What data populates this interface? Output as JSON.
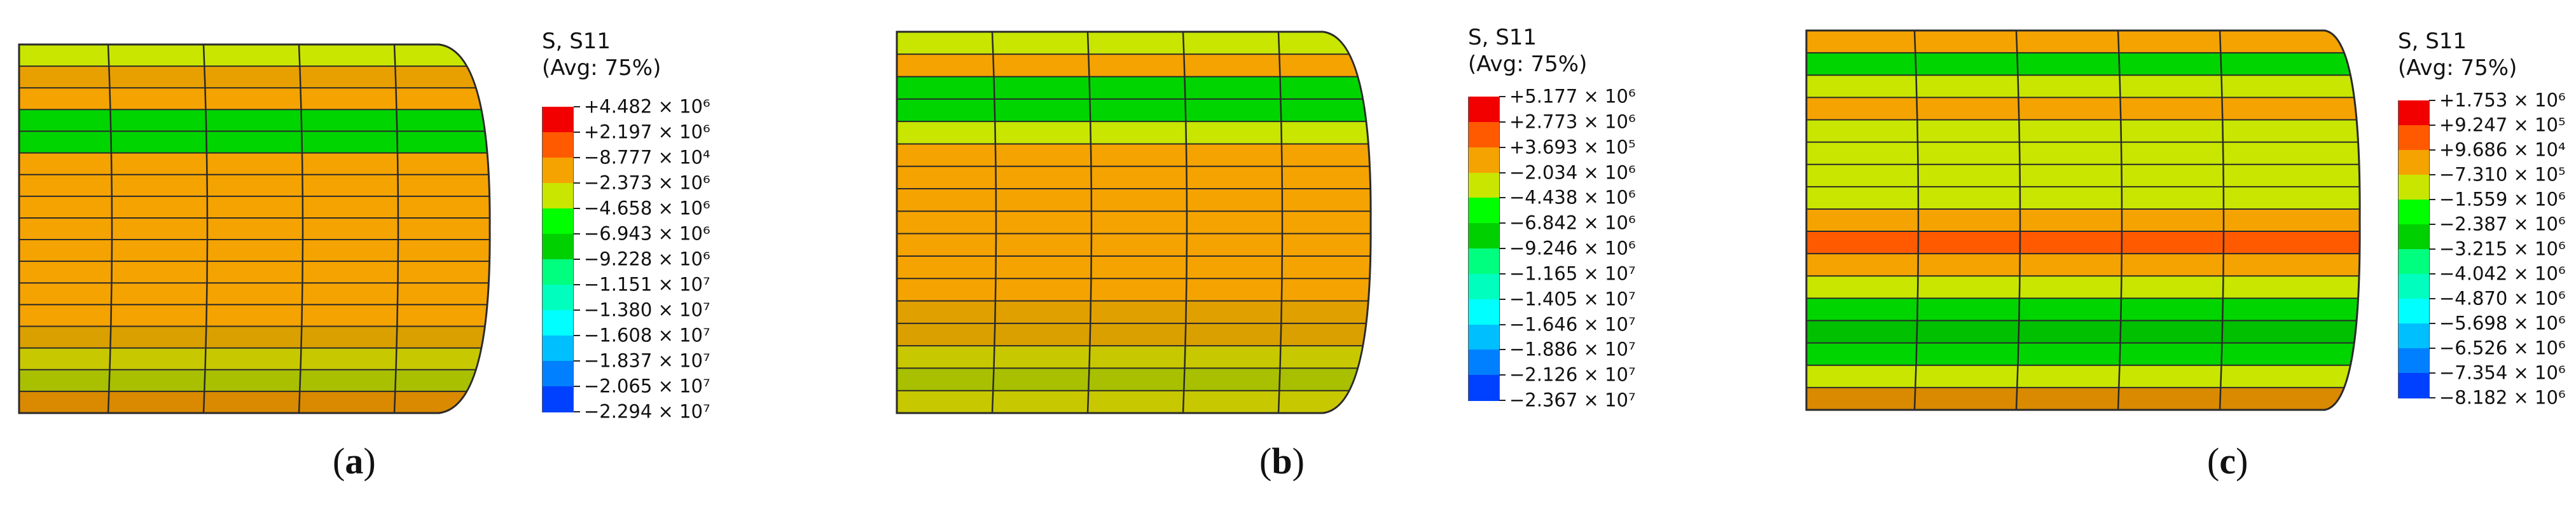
{
  "colors": {
    "red": "#f20000",
    "orange_red": "#ff5a00",
    "orange": "#f5a300",
    "yellow_green": "#c8e600",
    "green": "#00d500",
    "bright_green": "#00ff3c",
    "teal": "#00e6a0",
    "cyan": "#00e6e6",
    "sky": "#00a8ff",
    "blue": "#0046ff",
    "deep_blue": "#0000ff",
    "dark_orange": "#d98a00",
    "olive": "#a8c000"
  },
  "legend_scale": [
    "#f20000",
    "#ff5a00",
    "#f5a300",
    "#c8e600",
    "#00ff00",
    "#00d000",
    "#00ff7f",
    "#00ffbf",
    "#00ffff",
    "#00bfff",
    "#007fff",
    "#0040ff",
    "#0000ff"
  ],
  "panels": [
    {
      "id": "a",
      "caption_letter": "a",
      "caption_open": "(",
      "caption_close": ")",
      "legend_title_1": "S, S11",
      "legend_title_2": "(Avg: 75%)",
      "legend_values": [
        "+4.482 × 10⁶",
        "+2.197 × 10⁶",
        "−8.777 × 10⁴",
        "−2.373 × 10⁶",
        "−4.658 × 10⁶",
        "−6.943 × 10⁶",
        "−9.228 × 10⁶",
        "−1.151 × 10⁷",
        "−1.380 × 10⁷",
        "−1.608 × 10⁷",
        "−1.837 × 10⁷",
        "−2.065 × 10⁷",
        "−2.294 × 10⁷"
      ],
      "bands": [
        "#c8e600",
        "#e8a000",
        "#f5a300",
        "#00d500",
        "#00d500",
        "#f5a300",
        "#f5a300",
        "#f5a300",
        "#f5a300",
        "#f5a300",
        "#f5a300",
        "#f5a300",
        "#f5a300",
        "#d9a000",
        "#c8c800",
        "#a8c000",
        "#d98a00"
      ]
    },
    {
      "id": "b",
      "caption_letter": "b",
      "caption_open": "(",
      "caption_close": ")",
      "legend_title_1": "S, S11",
      "legend_title_2": "(Avg: 75%)",
      "legend_values": [
        "+5.177 × 10⁶",
        "+2.773 × 10⁶",
        "+3.693 × 10⁵",
        "−2.034 × 10⁶",
        "−4.438 × 10⁶",
        "−6.842 × 10⁶",
        "−9.246 × 10⁶",
        "−1.165 × 10⁷",
        "−1.405 × 10⁷",
        "−1.646 × 10⁷",
        "−1.886 × 10⁷",
        "−2.126 × 10⁷",
        "−2.367 × 10⁷"
      ],
      "bands": [
        "#c8e600",
        "#f5a300",
        "#00d500",
        "#00d500",
        "#c8e600",
        "#f5a300",
        "#f5a300",
        "#f5a300",
        "#f5a300",
        "#f5a300",
        "#f5a300",
        "#f5a300",
        "#e0a000",
        "#d9a000",
        "#c8c800",
        "#a8c000",
        "#c8c800"
      ]
    },
    {
      "id": "c",
      "caption_letter": "c",
      "caption_open": "(",
      "caption_close": ")",
      "legend_title_1": "S, S11",
      "legend_title_2": "(Avg: 75%)",
      "legend_values": [
        "+1.753 × 10⁶",
        "+9.247 × 10⁵",
        "+9.686 × 10⁴",
        "−7.310 × 10⁵",
        "−1.559 × 10⁶",
        "−2.387 × 10⁶",
        "−3.215 × 10⁶",
        "−4.042 × 10⁶",
        "−4.870 × 10⁶",
        "−5.698 × 10⁶",
        "−6.526 × 10⁶",
        "−7.354 × 10⁶",
        "−8.182 × 10⁶"
      ],
      "bands": [
        "#f5a300",
        "#00d500",
        "#c8e600",
        "#f5a300",
        "#c8e600",
        "#c8e600",
        "#c8e600",
        "#c8e600",
        "#f5a300",
        "#ff5a00",
        "#f5a300",
        "#c8e600",
        "#00d500",
        "#00c000",
        "#00d500",
        "#c8e600",
        "#d98a00"
      ]
    }
  ]
}
